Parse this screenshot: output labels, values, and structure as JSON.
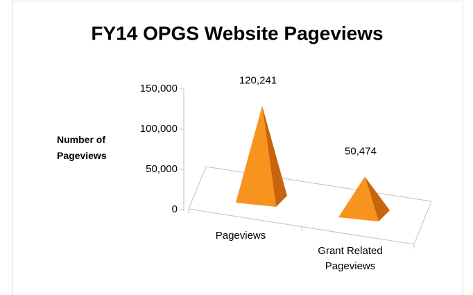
{
  "chart_data": {
    "type": "pyramid3d",
    "title": "FY14 OPGS Website Pageviews",
    "y_label": "Number of Pageviews",
    "categories": [
      "Pageviews",
      "Grant Related Pageviews"
    ],
    "values": [
      120241,
      50474
    ],
    "value_labels": [
      "120,241",
      "50,474"
    ],
    "color": "#f7931e",
    "ylim": [
      0,
      150000
    ],
    "yticks": [
      0,
      {
        "value": 50000,
        "label": "50,000"
      },
      {
        "value": 100000,
        "label": "100,000"
      },
      {
        "value": 150000,
        "label": "150,000"
      }
    ],
    "grid": false
  }
}
